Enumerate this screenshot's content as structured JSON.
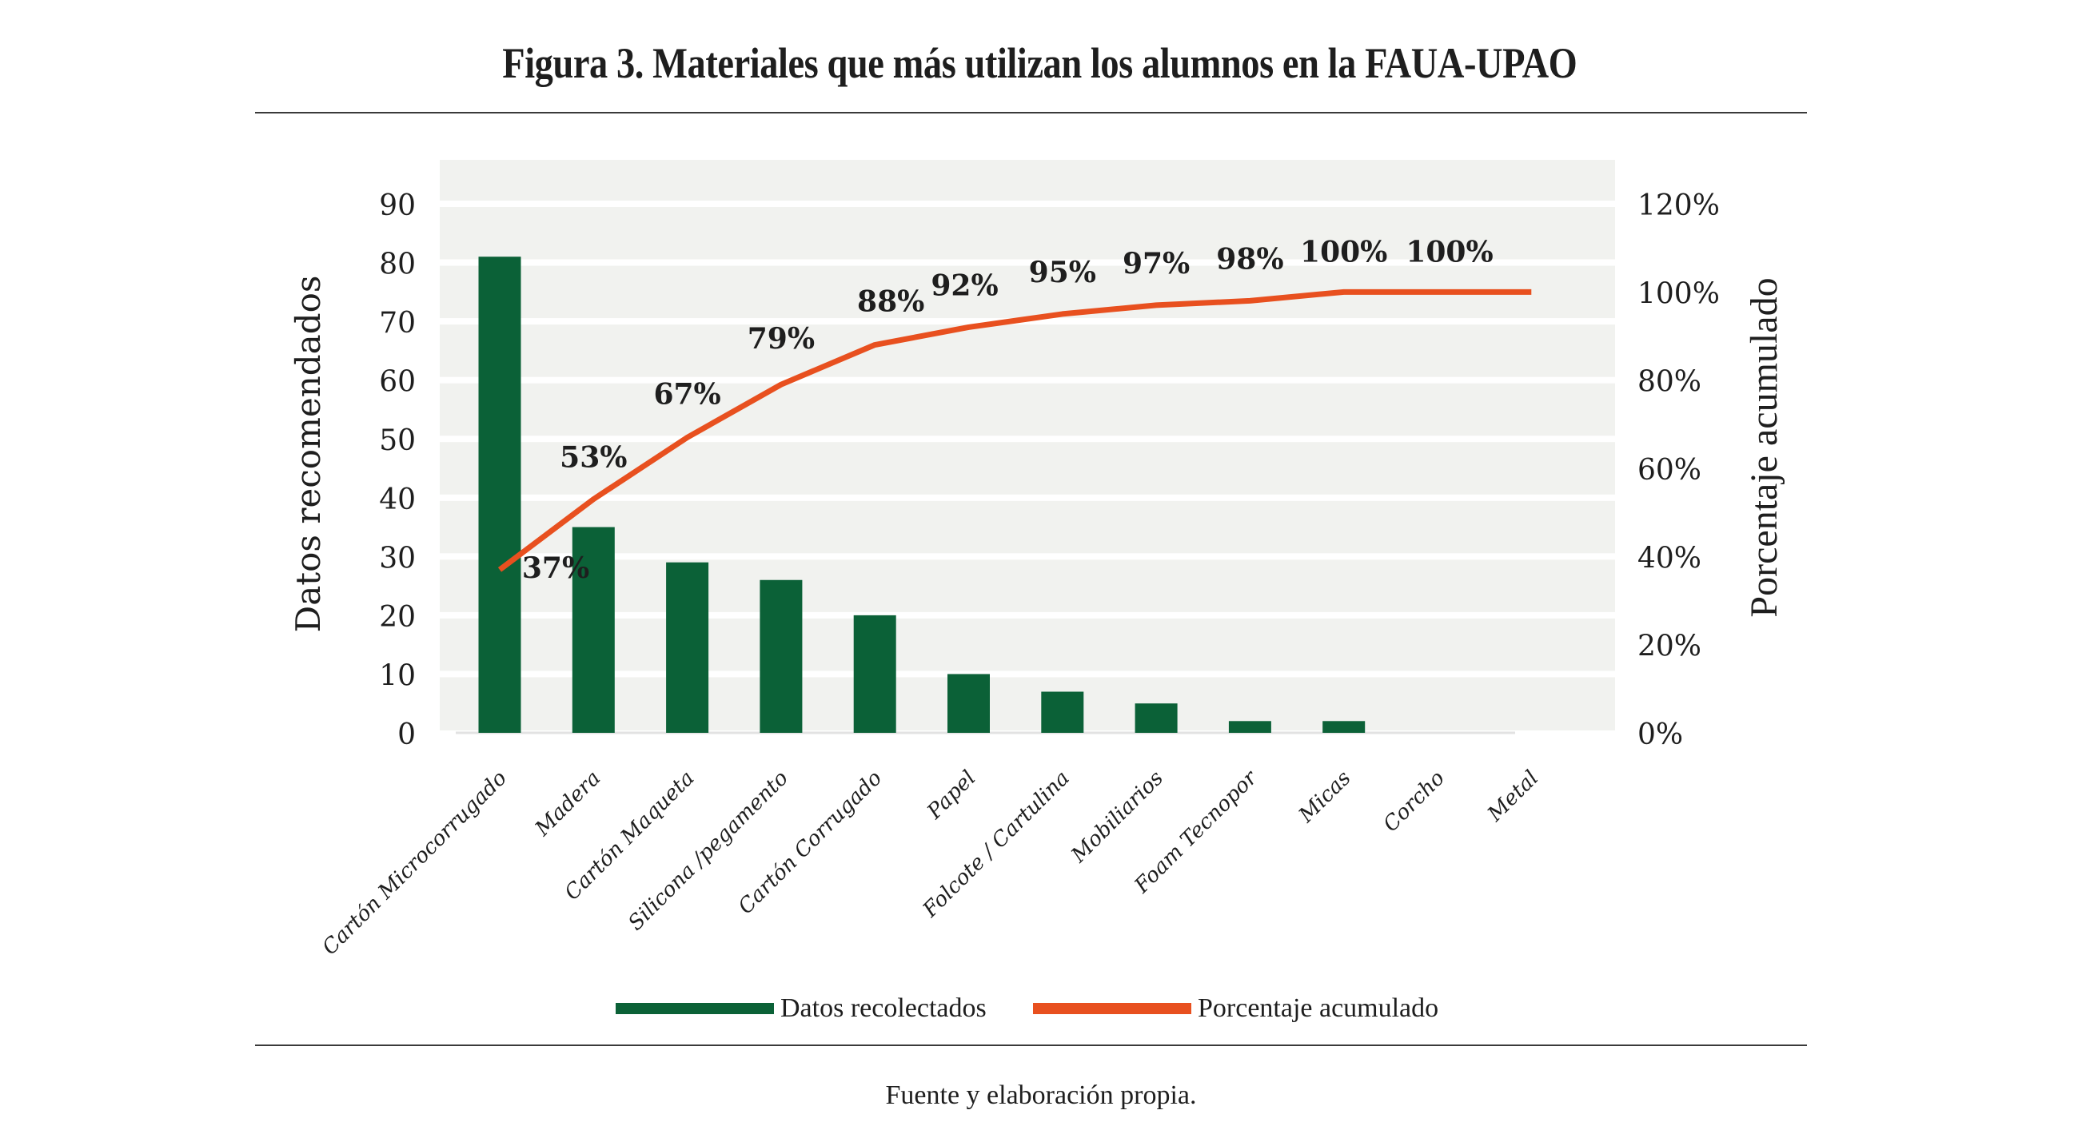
{
  "figure": {
    "title": "Figura 3. Materiales que más utilizan los alumnos en la FAUA-UPAO",
    "source_note": "Fuente y elaboración propia."
  },
  "colors": {
    "bar": "#0b6137",
    "line": "#e8501f",
    "plot_background": "#f1f2ef",
    "gridline": "#ffffff",
    "text": "#1e1e1e"
  },
  "chart_data": {
    "type": "bar",
    "title": "Figura 3. Materiales que más utilizan los alumnos en la FAUA-UPAO",
    "xlabel": "",
    "ylabel": "Datos recomendados",
    "y2label": "Porcentaje acumulado",
    "categories": [
      "Cartón Microcorrugado",
      "Madera",
      "Cartón Maqueta",
      "Silicona /pegamento",
      "Cartón Corrugado",
      "Papel",
      "Folcote / Cartulina",
      "Mobiliarios",
      "Foam Tecnopor",
      "Micas",
      "Corcho",
      "Metal"
    ],
    "series": [
      {
        "name": "Datos recolectados",
        "type": "bar",
        "axis": "left",
        "values": [
          81,
          35,
          29,
          26,
          20,
          10,
          7,
          5,
          2,
          2,
          0,
          0
        ]
      },
      {
        "name": "Porcentaje acumulado",
        "type": "line",
        "axis": "right",
        "values": [
          37,
          53,
          67,
          79,
          88,
          92,
          95,
          97,
          98,
          100,
          100,
          100
        ],
        "data_labels": [
          "37%",
          "53%",
          "67%",
          "79%",
          "88%",
          "92%",
          "95%",
          "97%",
          "98%",
          "100%",
          "100%",
          ""
        ]
      }
    ],
    "ylim": [
      0,
      90
    ],
    "y_ticks": [
      0,
      10,
      20,
      30,
      40,
      50,
      60,
      70,
      80,
      90
    ],
    "y2lim": [
      0,
      120
    ],
    "y2_ticks": [
      "0%",
      "20%",
      "40%",
      "60%",
      "80%",
      "100%",
      "120%"
    ],
    "y2_tick_values": [
      0,
      20,
      40,
      60,
      80,
      100,
      120
    ],
    "grid": true,
    "legend": {
      "position": "bottom",
      "entries": [
        "Datos recolectados",
        "Porcentaje acumulado"
      ]
    }
  }
}
